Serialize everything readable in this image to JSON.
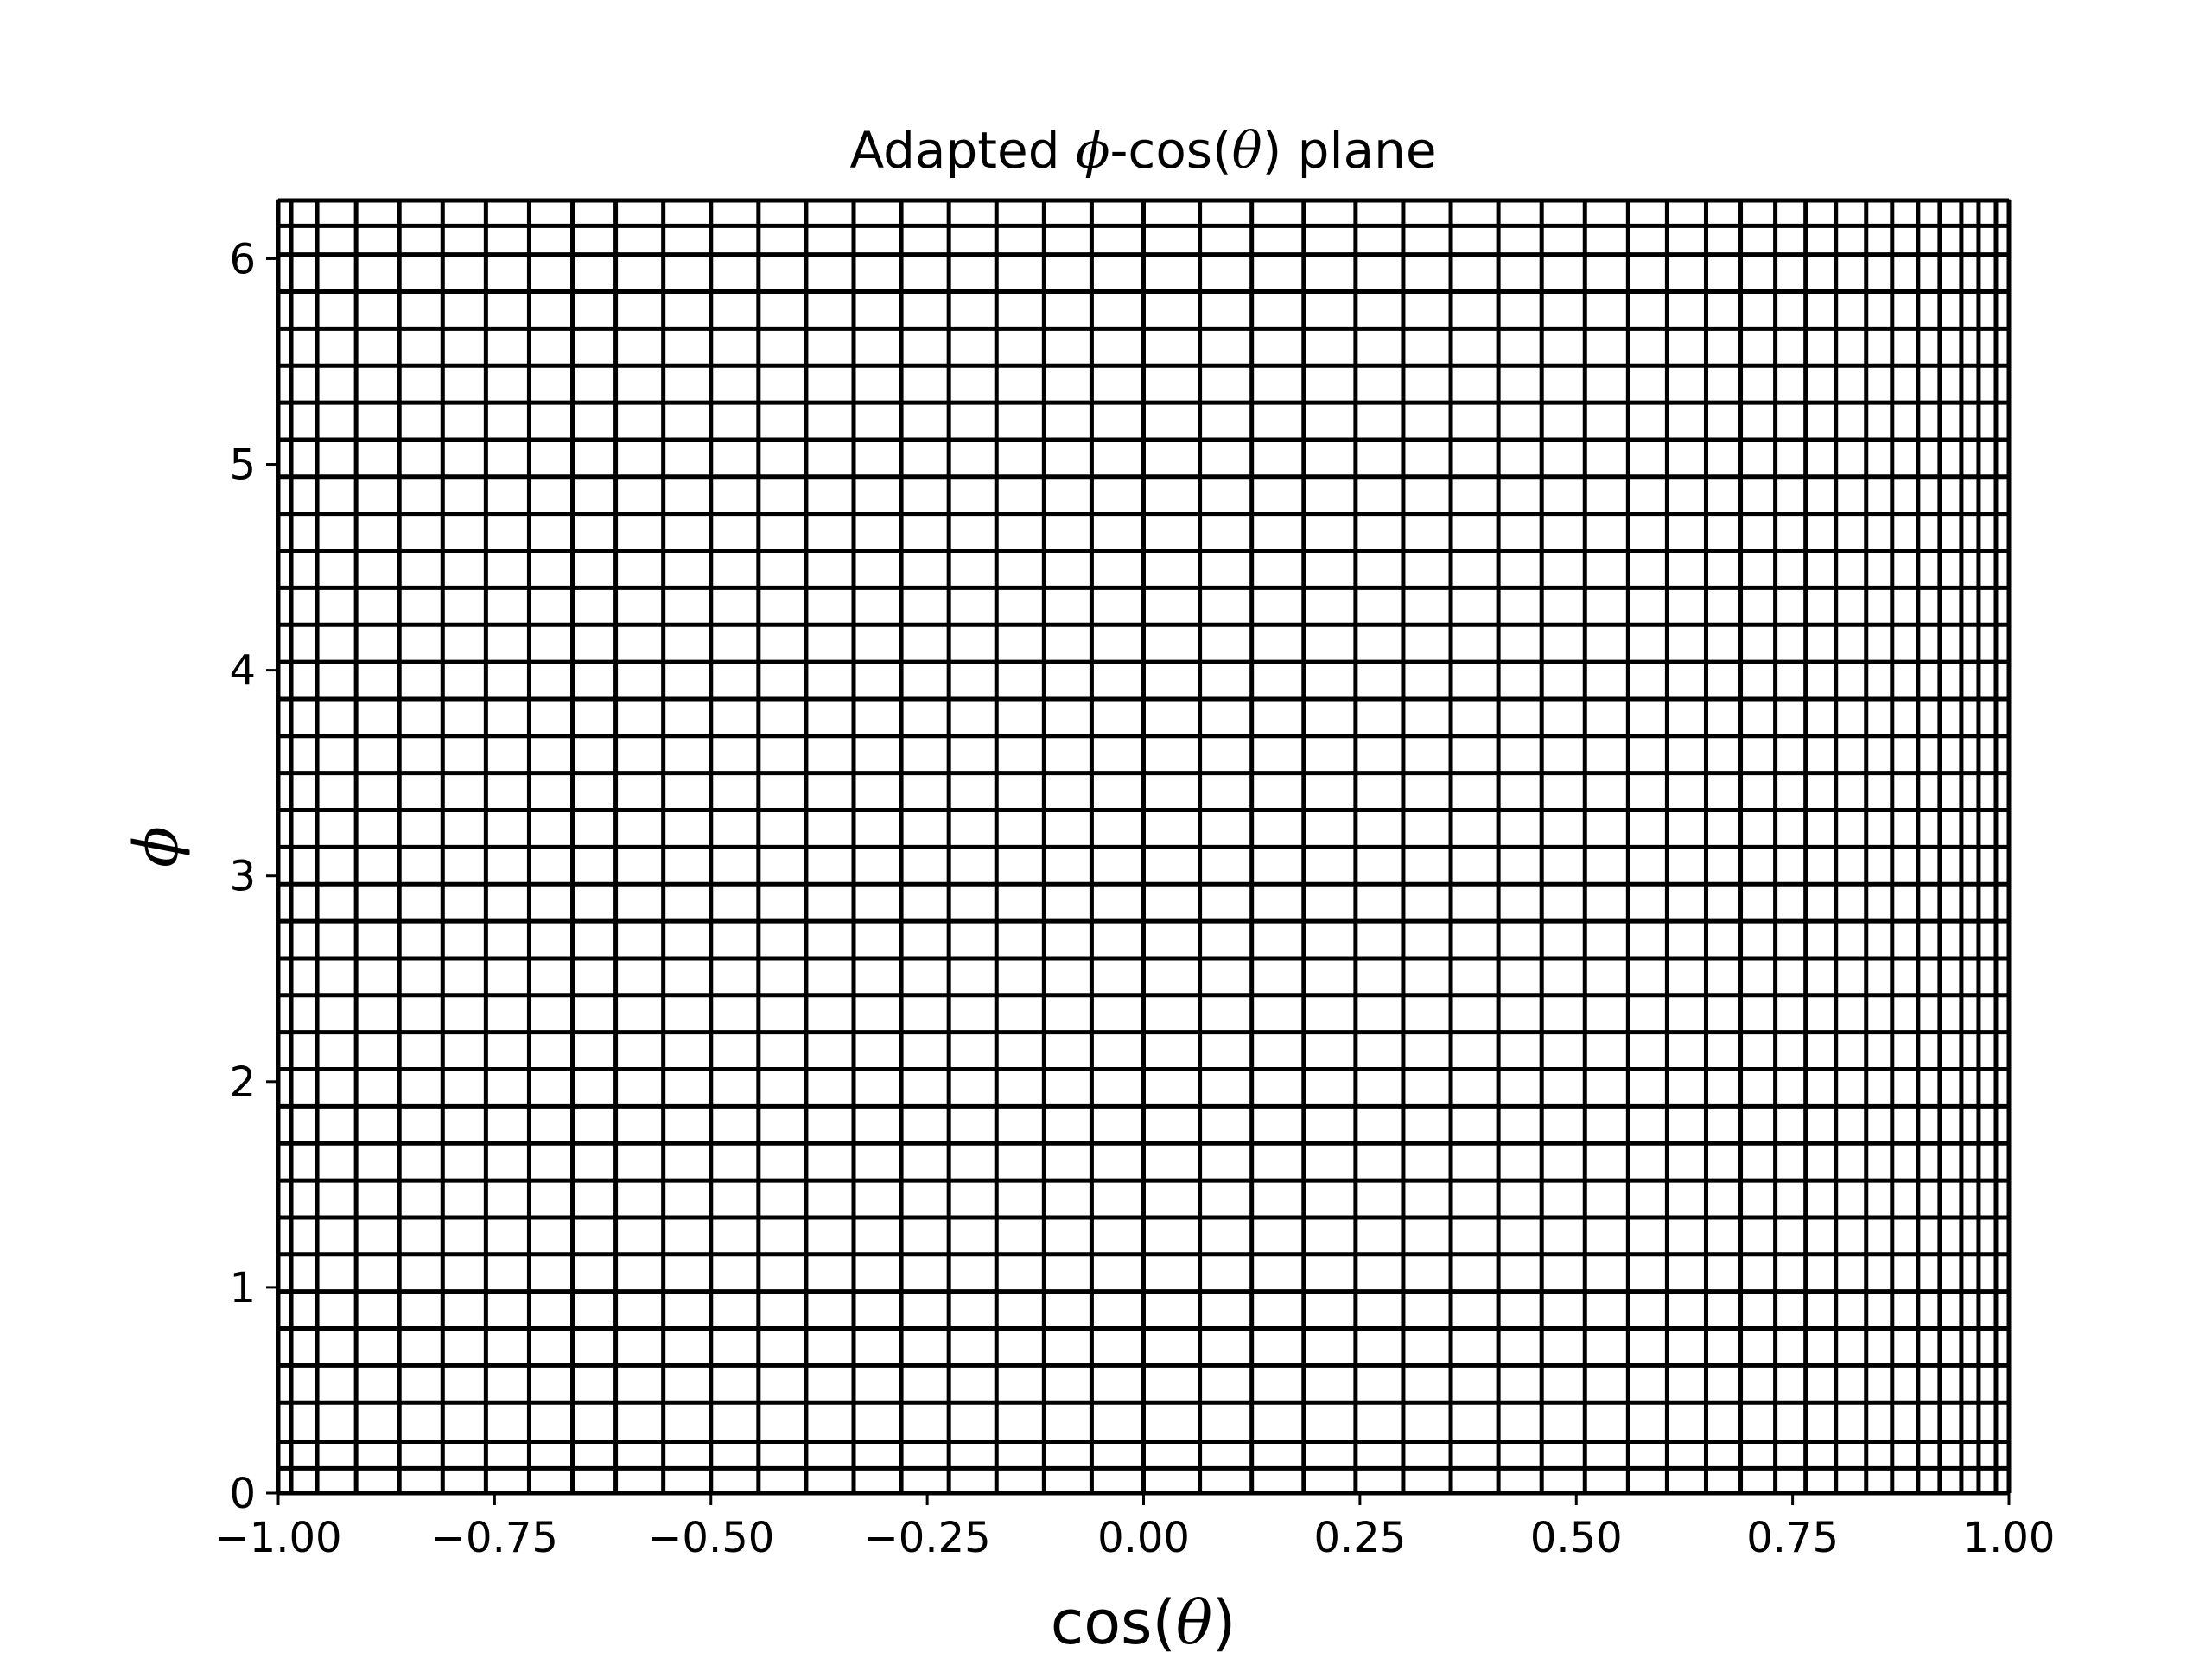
{
  "chart_data": {
    "type": "line",
    "title_parts": {
      "before": "Adapted ",
      "symbol": "ϕ",
      "middle": "-cos(",
      "theta": "θ",
      "after": ") plane"
    },
    "xlabel_parts": {
      "before": "cos(",
      "theta": "θ",
      "after": ")"
    },
    "ylabel": "ϕ",
    "xlim": [
      -1.0,
      1.0
    ],
    "ylim": [
      0,
      6.283185307
    ],
    "x_ticks": [
      -1.0,
      -0.75,
      -0.5,
      -0.25,
      0.0,
      0.25,
      0.5,
      0.75,
      1.0
    ],
    "x_tick_labels": [
      "−1.00",
      "−0.75",
      "−0.50",
      "−0.25",
      "0.00",
      "0.25",
      "0.50",
      "0.75",
      "1.00"
    ],
    "y_ticks": [
      0,
      1,
      2,
      3,
      4,
      5,
      6
    ],
    "y_tick_labels": [
      "0",
      "1",
      "2",
      "3",
      "4",
      "5",
      "6"
    ],
    "grid_line_color": "#000000",
    "vertical_lines_x": [
      -1.0,
      -0.985,
      -0.955,
      -0.91,
      -0.86,
      -0.81,
      -0.76,
      -0.71,
      -0.66,
      -0.61,
      -0.555,
      -0.5,
      -0.445,
      -0.39,
      -0.335,
      -0.28,
      -0.225,
      -0.17,
      -0.115,
      -0.06,
      0.0,
      0.065,
      0.125,
      0.185,
      0.245,
      0.3,
      0.355,
      0.41,
      0.46,
      0.51,
      0.56,
      0.605,
      0.65,
      0.69,
      0.73,
      0.765,
      0.8,
      0.835,
      0.865,
      0.895,
      0.92,
      0.945,
      0.965,
      0.985,
      1.0
    ],
    "horizontal_lines_y": [
      0.0,
      0.12,
      0.25,
      0.44,
      0.62,
      0.8,
      0.98,
      1.16,
      1.34,
      1.52,
      1.7,
      1.88,
      2.06,
      2.24,
      2.42,
      2.6,
      2.78,
      2.96,
      3.14,
      3.32,
      3.5,
      3.68,
      3.86,
      4.04,
      4.22,
      4.4,
      4.58,
      4.76,
      4.94,
      5.12,
      5.3,
      5.48,
      5.66,
      5.84,
      6.02,
      6.16,
      6.283
    ]
  }
}
